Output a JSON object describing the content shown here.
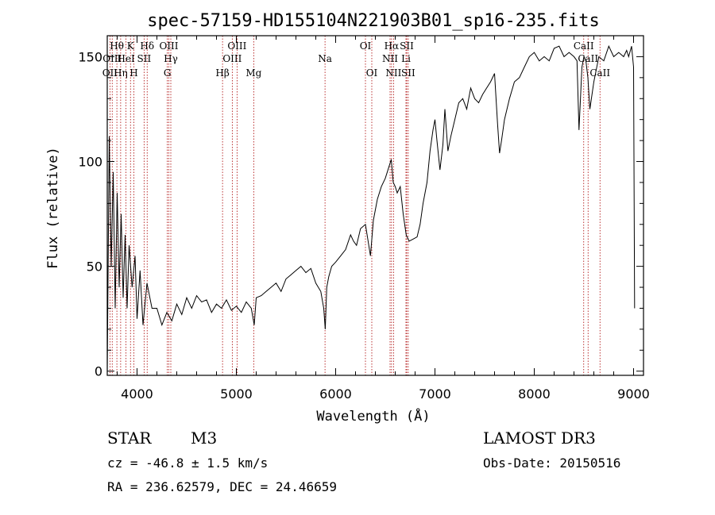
{
  "chart_data": {
    "type": "line",
    "title": "spec-57159-HD155104N221903B01_sp16-235.fits",
    "xlabel": "Wavelength (Å)",
    "ylabel": "Flux (relative)",
    "xlim": [
      3700,
      9100
    ],
    "ylim": [
      -2,
      160
    ],
    "x_ticks": [
      4000,
      5000,
      6000,
      7000,
      8000,
      9000
    ],
    "y_ticks": [
      0,
      50,
      100,
      150
    ],
    "grid": false,
    "line_color": "#000000",
    "marker_color": "#aa0000",
    "series": [
      {
        "x": [
          3700,
          3720,
          3740,
          3760,
          3780,
          3800,
          3820,
          3840,
          3860,
          3880,
          3900,
          3920,
          3950,
          3980,
          4000,
          4030,
          4060,
          4100,
          4150,
          4200,
          4250,
          4300,
          4350,
          4400,
          4450,
          4500,
          4550,
          4600,
          4650,
          4700,
          4750,
          4800,
          4850,
          4900,
          4950,
          5000,
          5050,
          5100,
          5150,
          5180,
          5200,
          5250,
          5300,
          5350,
          5400,
          5450,
          5500,
          5550,
          5600,
          5650,
          5700,
          5750,
          5800,
          5850,
          5880,
          5895,
          5910,
          5930,
          5960,
          6000,
          6050,
          6100,
          6150,
          6180,
          6210,
          6250,
          6300,
          6350,
          6380,
          6420,
          6460,
          6500,
          6540,
          6560,
          6580,
          6600,
          6620,
          6650,
          6680,
          6710,
          6740,
          6780,
          6820,
          6850,
          6880,
          6920,
          6950,
          6980,
          7000,
          7020,
          7050,
          7080,
          7100,
          7130,
          7160,
          7200,
          7240,
          7280,
          7320,
          7360,
          7400,
          7440,
          7480,
          7520,
          7560,
          7600,
          7630,
          7650,
          7670,
          7700,
          7750,
          7800,
          7850,
          7900,
          7950,
          8000,
          8050,
          8100,
          8150,
          8200,
          8250,
          8300,
          8350,
          8400,
          8430,
          8450,
          8480,
          8500,
          8520,
          8540,
          8560,
          8600,
          8650,
          8700,
          8750,
          8800,
          8850,
          8900,
          8930,
          8950,
          8980,
          9000,
          9010
        ],
        "y": [
          0,
          112,
          50,
          95,
          30,
          85,
          40,
          75,
          35,
          65,
          30,
          60,
          40,
          55,
          25,
          48,
          22,
          42,
          30,
          30,
          22,
          28,
          24,
          32,
          27,
          35,
          30,
          36,
          33,
          34,
          28,
          32,
          30,
          34,
          29,
          31,
          28,
          33,
          30,
          22,
          35,
          36,
          38,
          40,
          42,
          38,
          44,
          46,
          48,
          50,
          47,
          49,
          42,
          38,
          30,
          20,
          40,
          45,
          50,
          52,
          55,
          58,
          65,
          62,
          60,
          68,
          70,
          55,
          72,
          82,
          88,
          92,
          98,
          101,
          90,
          88,
          85,
          88,
          75,
          65,
          62,
          63,
          64,
          70,
          80,
          90,
          105,
          115,
          120,
          110,
          96,
          108,
          125,
          105,
          112,
          120,
          128,
          130,
          125,
          135,
          130,
          128,
          132,
          135,
          138,
          142,
          118,
          104,
          110,
          120,
          130,
          138,
          140,
          145,
          150,
          152,
          148,
          150,
          148,
          154,
          155,
          150,
          152,
          150,
          148,
          115,
          145,
          150,
          148,
          140,
          125,
          138,
          150,
          148,
          155,
          150,
          152,
          150,
          153,
          150,
          155,
          145,
          30
        ]
      }
    ],
    "spectral_lines": [
      {
        "label": "OII",
        "x": 3727,
        "row": 3
      },
      {
        "label": "Hθ",
        "x": 3797,
        "row": 1
      },
      {
        "label": "OIII",
        "x": 3750,
        "row": 2
      },
      {
        "label": "Hη",
        "x": 3835,
        "row": 3
      },
      {
        "label": "HeI",
        "x": 3889,
        "row": 2
      },
      {
        "label": "K",
        "x": 3934,
        "row": 1
      },
      {
        "label": "H",
        "x": 3968,
        "row": 3
      },
      {
        "label": "SII",
        "x": 4071,
        "row": 2
      },
      {
        "label": "Hδ",
        "x": 4102,
        "row": 1
      },
      {
        "label": "OIII",
        "x": 4320,
        "row": 1
      },
      {
        "label": "Hγ",
        "x": 4340,
        "row": 2
      },
      {
        "label": "G",
        "x": 4305,
        "row": 3
      },
      {
        "label": "Hβ",
        "x": 4861,
        "row": 3
      },
      {
        "label": "OIII",
        "x": 4959,
        "row": 2
      },
      {
        "label": "OIII",
        "x": 5007,
        "row": 1
      },
      {
        "label": "Mg",
        "x": 5175,
        "row": 3
      },
      {
        "label": "Na",
        "x": 5893,
        "row": 2
      },
      {
        "label": "OI",
        "x": 6300,
        "row": 1
      },
      {
        "label": "OI",
        "x": 6364,
        "row": 3
      },
      {
        "label": "NII",
        "x": 6548,
        "row": 2
      },
      {
        "label": "Hα",
        "x": 6563,
        "row": 1
      },
      {
        "label": "NII",
        "x": 6583,
        "row": 3
      },
      {
        "label": "SII",
        "x": 6716,
        "row": 1
      },
      {
        "label": "Li",
        "x": 6708,
        "row": 2
      },
      {
        "label": "SII",
        "x": 6731,
        "row": 3
      },
      {
        "label": "CaII",
        "x": 8498,
        "row": 1
      },
      {
        "label": "CaII",
        "x": 8542,
        "row": 2
      },
      {
        "label": "CaII",
        "x": 8662,
        "row": 3
      }
    ]
  },
  "info": {
    "obj_class": "STAR",
    "subclass": "M3",
    "survey": "LAMOST DR3",
    "cz": "cz = -46.8 ± 1.5 km/s",
    "obs_date": "Obs-Date: 20150516",
    "radec": "RA = 236.62579, DEC =  24.46659"
  }
}
